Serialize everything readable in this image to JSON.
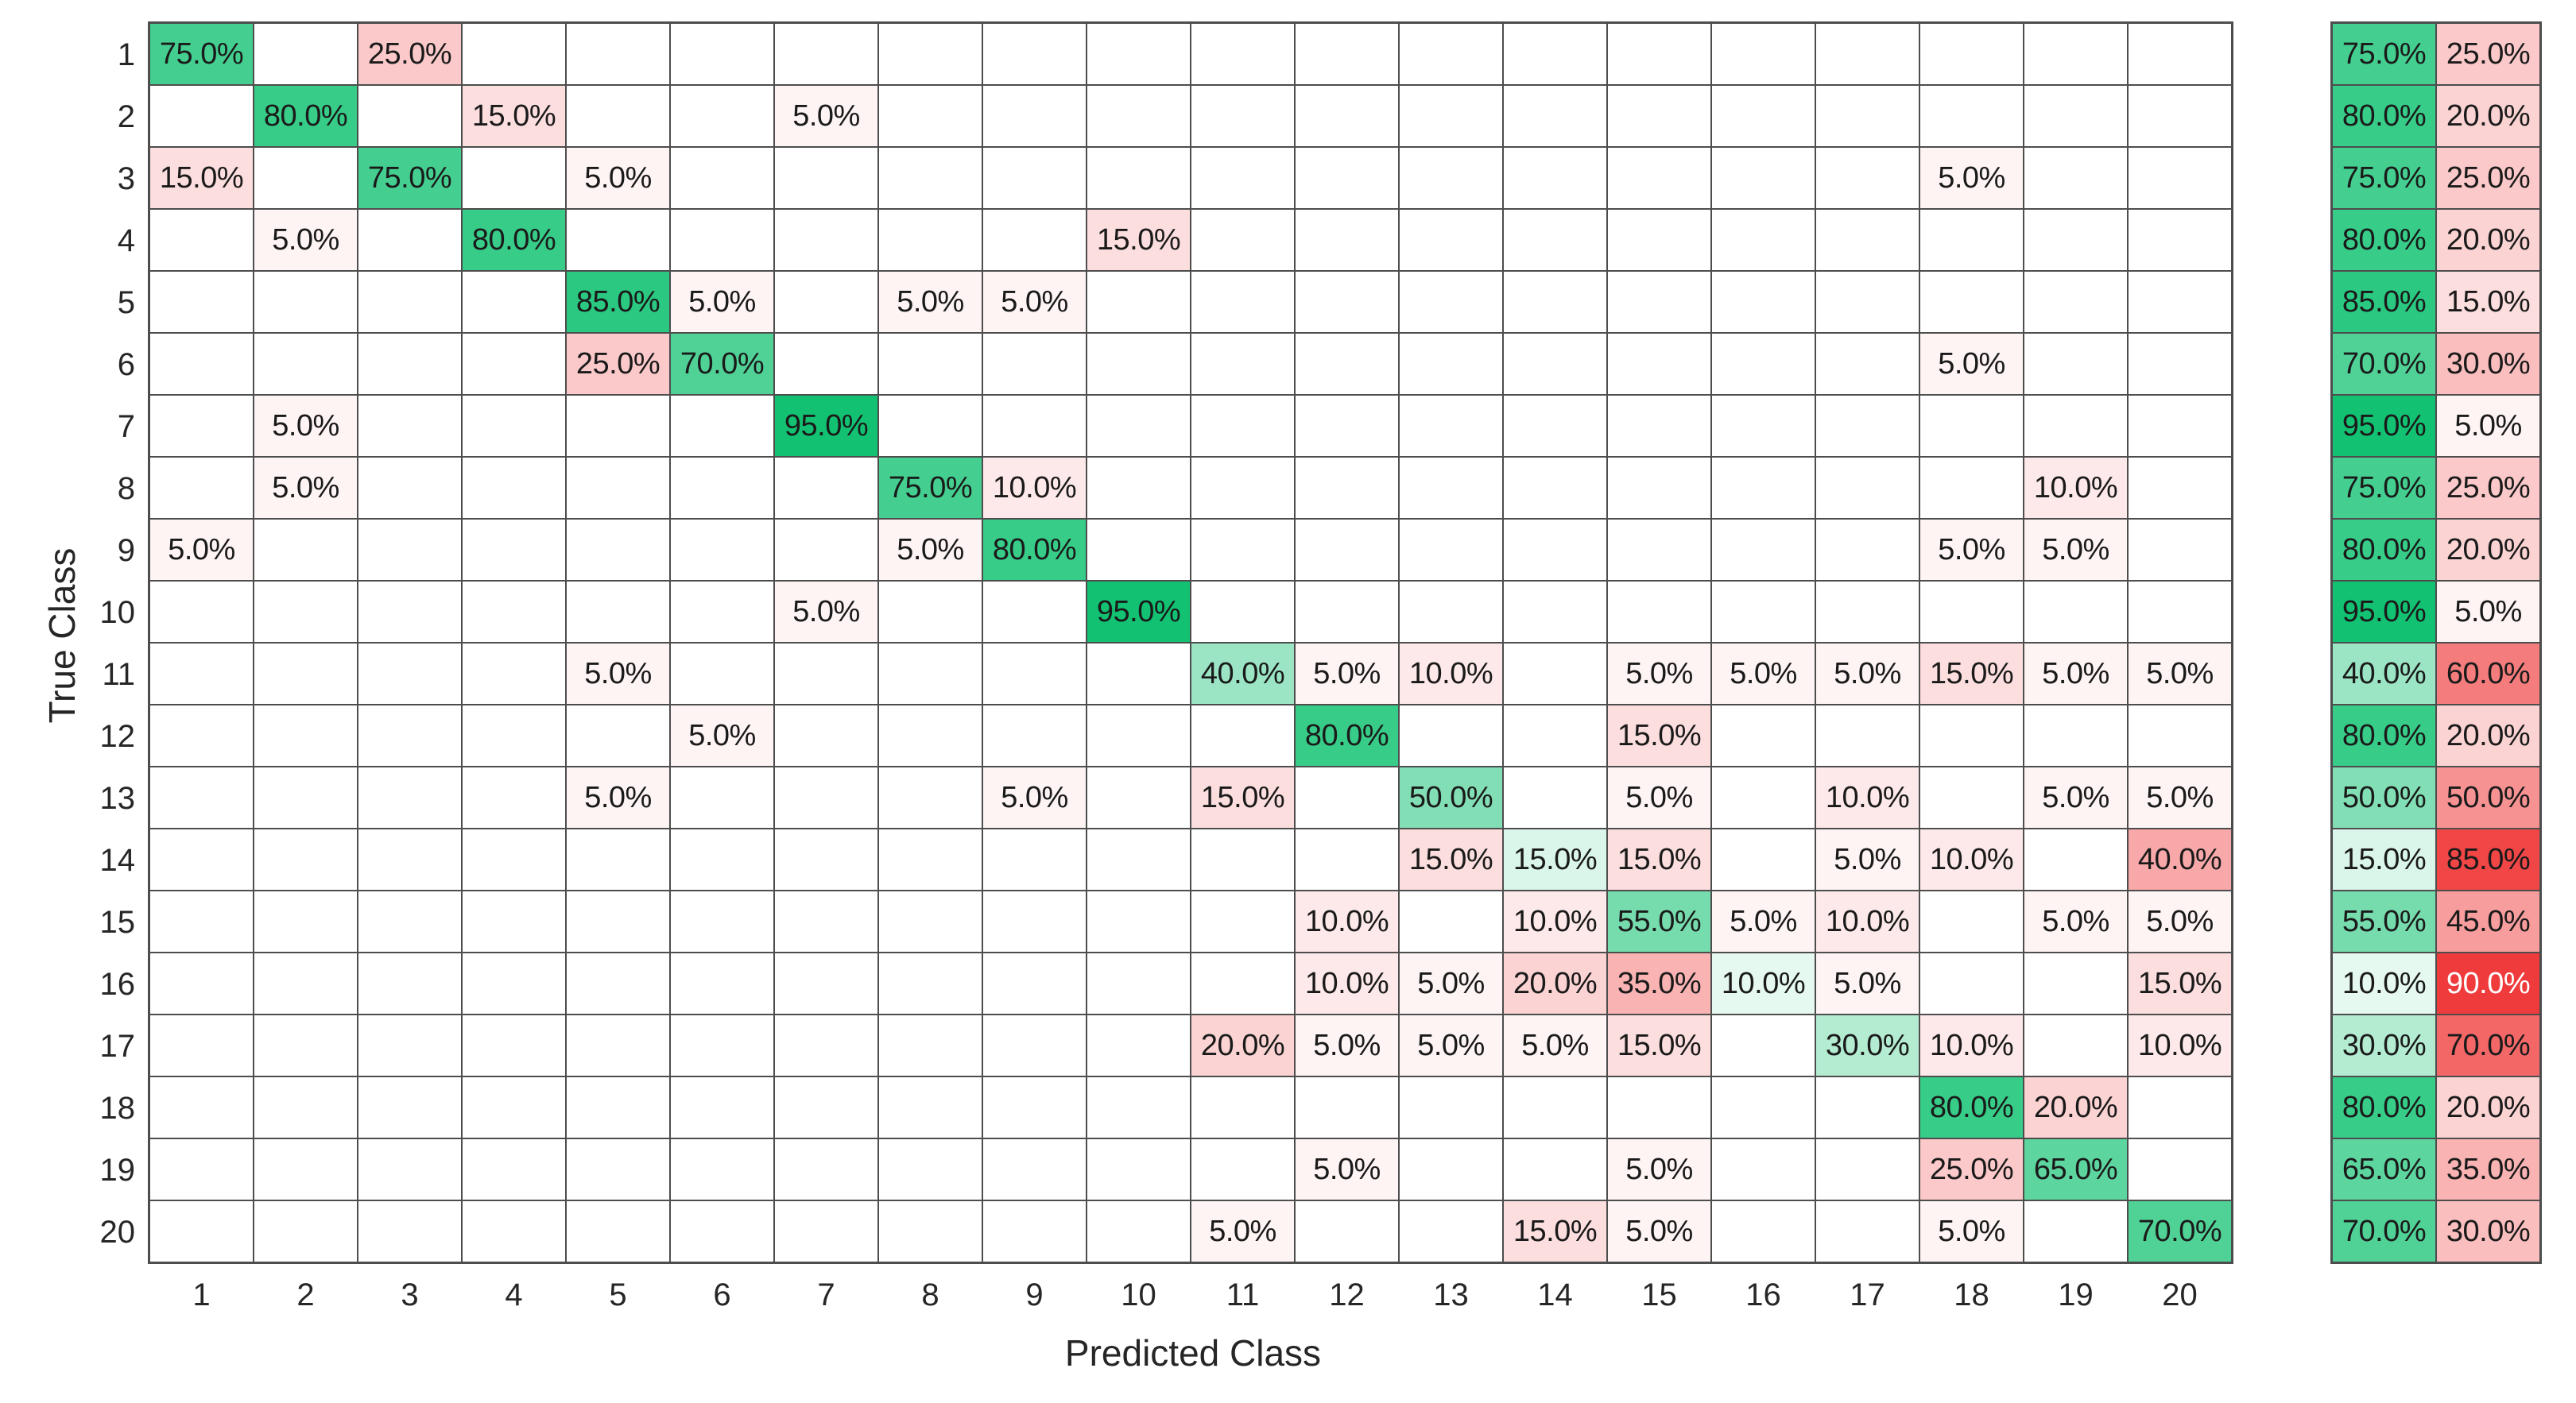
{
  "chart_data": {
    "type": "heatmap",
    "subtype": "confusion-matrix",
    "title": "",
    "xlabel": "Predicted Class",
    "ylabel": "True Class",
    "classes": [
      "1",
      "2",
      "3",
      "4",
      "5",
      "6",
      "7",
      "8",
      "9",
      "10",
      "11",
      "12",
      "13",
      "14",
      "15",
      "16",
      "17",
      "18",
      "19",
      "20"
    ],
    "cell_value_format": "one_decimal_percent",
    "empty_cell_value": 0,
    "matrix_percent": [
      [
        75,
        0,
        25,
        0,
        0,
        0,
        0,
        0,
        0,
        0,
        0,
        0,
        0,
        0,
        0,
        0,
        0,
        0,
        0,
        0
      ],
      [
        0,
        80,
        0,
        15,
        0,
        0,
        5,
        0,
        0,
        0,
        0,
        0,
        0,
        0,
        0,
        0,
        0,
        0,
        0,
        0
      ],
      [
        15,
        0,
        75,
        0,
        5,
        0,
        0,
        0,
        0,
        0,
        0,
        0,
        0,
        0,
        0,
        0,
        0,
        5,
        0,
        0
      ],
      [
        0,
        5,
        0,
        80,
        0,
        0,
        0,
        0,
        0,
        15,
        0,
        0,
        0,
        0,
        0,
        0,
        0,
        0,
        0,
        0
      ],
      [
        0,
        0,
        0,
        0,
        85,
        5,
        0,
        5,
        5,
        0,
        0,
        0,
        0,
        0,
        0,
        0,
        0,
        0,
        0,
        0
      ],
      [
        0,
        0,
        0,
        0,
        25,
        70,
        0,
        0,
        0,
        0,
        0,
        0,
        0,
        0,
        0,
        0,
        0,
        5,
        0,
        0
      ],
      [
        0,
        5,
        0,
        0,
        0,
        0,
        95,
        0,
        0,
        0,
        0,
        0,
        0,
        0,
        0,
        0,
        0,
        0,
        0,
        0
      ],
      [
        0,
        5,
        0,
        0,
        0,
        0,
        0,
        75,
        10,
        0,
        0,
        0,
        0,
        0,
        0,
        0,
        0,
        0,
        10,
        0
      ],
      [
        5,
        0,
        0,
        0,
        0,
        0,
        0,
        5,
        80,
        0,
        0,
        0,
        0,
        0,
        0,
        0,
        0,
        5,
        5,
        0
      ],
      [
        0,
        0,
        0,
        0,
        0,
        0,
        5,
        0,
        0,
        95,
        0,
        0,
        0,
        0,
        0,
        0,
        0,
        0,
        0,
        0
      ],
      [
        0,
        0,
        0,
        0,
        5,
        0,
        0,
        0,
        0,
        0,
        40,
        5,
        10,
        0,
        5,
        5,
        5,
        15,
        5,
        5
      ],
      [
        0,
        0,
        0,
        0,
        0,
        5,
        0,
        0,
        0,
        0,
        0,
        80,
        0,
        0,
        15,
        0,
        0,
        0,
        0,
        0
      ],
      [
        0,
        0,
        0,
        0,
        5,
        0,
        0,
        0,
        5,
        0,
        15,
        0,
        50,
        0,
        5,
        0,
        10,
        0,
        5,
        5
      ],
      [
        0,
        0,
        0,
        0,
        0,
        0,
        0,
        0,
        0,
        0,
        0,
        0,
        15,
        15,
        15,
        0,
        5,
        10,
        0,
        40
      ],
      [
        0,
        0,
        0,
        0,
        0,
        0,
        0,
        0,
        0,
        0,
        0,
        10,
        0,
        10,
        55,
        5,
        10,
        0,
        5,
        5
      ],
      [
        0,
        0,
        0,
        0,
        0,
        0,
        0,
        0,
        0,
        0,
        0,
        10,
        5,
        20,
        35,
        10,
        5,
        0,
        0,
        15
      ],
      [
        0,
        0,
        0,
        0,
        0,
        0,
        0,
        0,
        0,
        0,
        20,
        5,
        5,
        5,
        15,
        0,
        30,
        10,
        0,
        10
      ],
      [
        0,
        0,
        0,
        0,
        0,
        0,
        0,
        0,
        0,
        0,
        0,
        0,
        0,
        0,
        0,
        0,
        0,
        80,
        20,
        0
      ],
      [
        0,
        0,
        0,
        0,
        0,
        0,
        0,
        0,
        0,
        0,
        0,
        5,
        0,
        0,
        5,
        0,
        0,
        25,
        65,
        0
      ],
      [
        0,
        0,
        0,
        0,
        0,
        0,
        0,
        0,
        0,
        0,
        5,
        0,
        0,
        15,
        5,
        0,
        0,
        5,
        0,
        70
      ]
    ],
    "row_summary": {
      "tpr_percent": [
        75,
        80,
        75,
        80,
        85,
        70,
        95,
        75,
        80,
        95,
        40,
        80,
        50,
        15,
        55,
        10,
        30,
        80,
        65,
        70
      ],
      "fnr_percent": [
        25,
        20,
        25,
        20,
        15,
        30,
        5,
        25,
        20,
        5,
        60,
        20,
        50,
        85,
        45,
        90,
        70,
        20,
        35,
        30
      ]
    },
    "colors": {
      "diagonal_full_green": "#12C272",
      "off_diagonal_full_red": "#EF3B3B",
      "green_scale_max_percent": 95,
      "red_scale_max_percent": 90,
      "cell_text": "#1a1a1a",
      "white_text": "#ffffff",
      "white_text_red_ratio_threshold": 0.97,
      "grid_line": "#4d4d4d",
      "axis_text": "#262626",
      "background": "#ffffff"
    },
    "grid": true,
    "legend_position": "none"
  }
}
